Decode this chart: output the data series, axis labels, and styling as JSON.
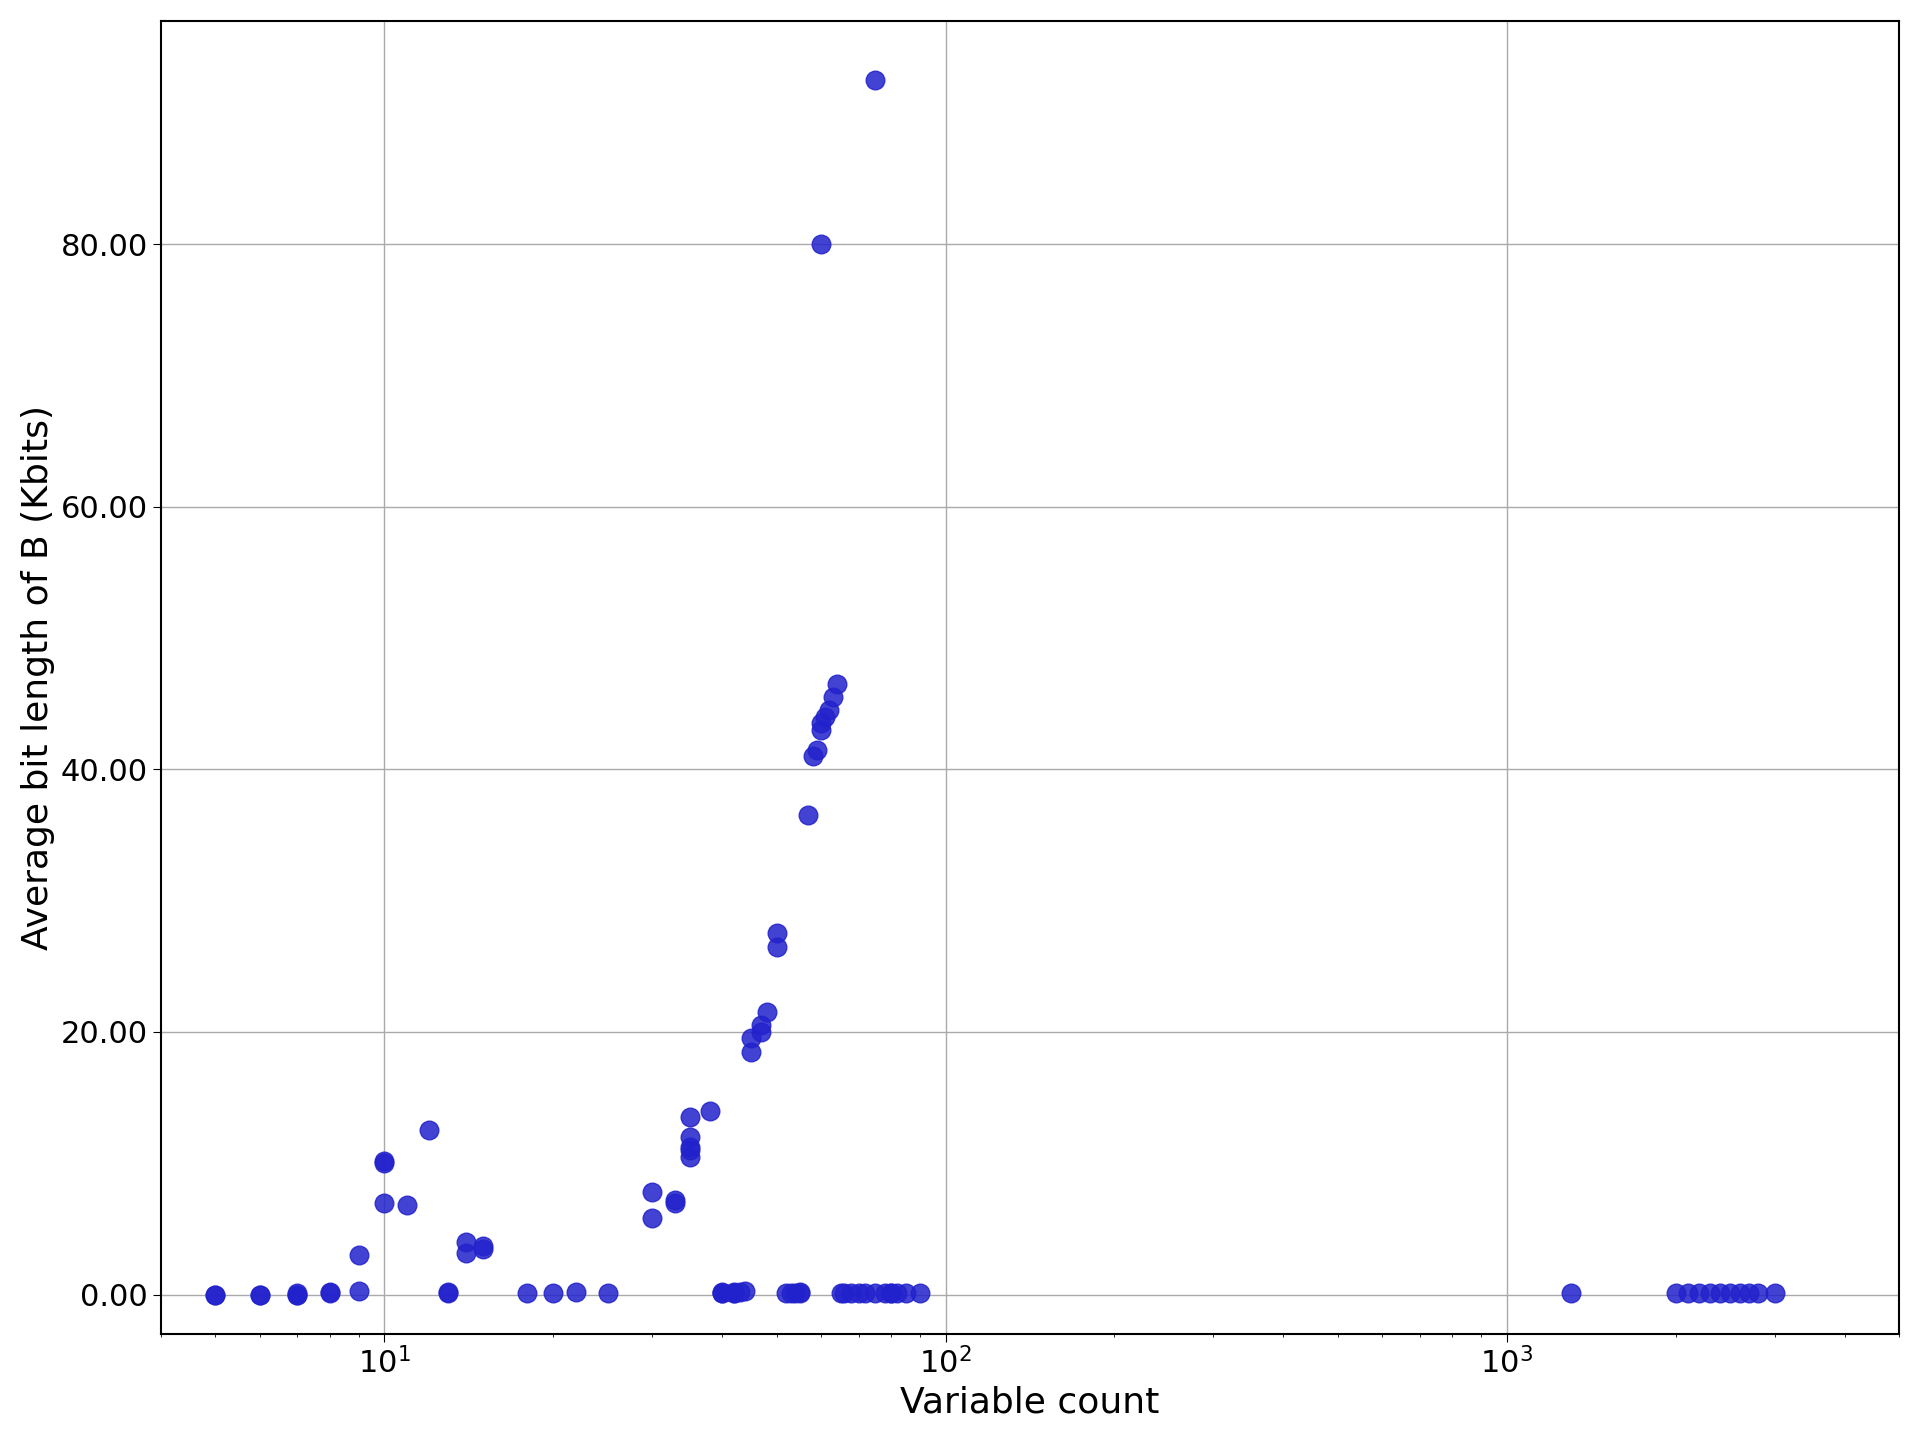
{
  "title": "",
  "xlabel": "Variable count",
  "ylabel": "Average bit length of B (Kbits)",
  "dot_color": "#2222cc",
  "dot_alpha": 0.85,
  "dot_size": 180,
  "background_color": "#ffffff",
  "grid_color": "#aaaaaa",
  "yticks": [
    0.0,
    20.0,
    40.0,
    60.0,
    80.0
  ],
  "ytick_labels": [
    "0.00",
    "20.00",
    "40.00",
    "60.00",
    "80.00"
  ],
  "xlim_log": [
    4,
    5000
  ],
  "ylim": [
    -3,
    97
  ],
  "xlabel_fontsize": 26,
  "ylabel_fontsize": 26,
  "tick_fontsize": 22,
  "points": [
    [
      5,
      0.0
    ],
    [
      5,
      0.0
    ],
    [
      6,
      0.0
    ],
    [
      6,
      0.0
    ],
    [
      7,
      0.0
    ],
    [
      7,
      0.0
    ],
    [
      7,
      0.1
    ],
    [
      8,
      0.15
    ],
    [
      8,
      0.2
    ],
    [
      9,
      0.25
    ],
    [
      9,
      3.0
    ],
    [
      10,
      10.2
    ],
    [
      10,
      10.0
    ],
    [
      10,
      7.0
    ],
    [
      11,
      6.8
    ],
    [
      12,
      12.5
    ],
    [
      13,
      0.1
    ],
    [
      13,
      0.2
    ],
    [
      14,
      3.2
    ],
    [
      14,
      4.0
    ],
    [
      15,
      3.5
    ],
    [
      15,
      3.7
    ],
    [
      18,
      0.1
    ],
    [
      20,
      0.1
    ],
    [
      22,
      0.2
    ],
    [
      25,
      0.1
    ],
    [
      30,
      5.8
    ],
    [
      30,
      7.8
    ],
    [
      33,
      7.0
    ],
    [
      33,
      7.2
    ],
    [
      35,
      10.5
    ],
    [
      35,
      11.0
    ],
    [
      35,
      11.2
    ],
    [
      35,
      12.0
    ],
    [
      35,
      13.5
    ],
    [
      38,
      14.0
    ],
    [
      40,
      0.1
    ],
    [
      40,
      0.15
    ],
    [
      40,
      0.2
    ],
    [
      42,
      0.1
    ],
    [
      42,
      0.15
    ],
    [
      42,
      0.2
    ],
    [
      43,
      0.2
    ],
    [
      44,
      0.25
    ],
    [
      45,
      18.5
    ],
    [
      45,
      19.5
    ],
    [
      47,
      20.0
    ],
    [
      47,
      20.5
    ],
    [
      48,
      21.5
    ],
    [
      50,
      26.5
    ],
    [
      50,
      27.5
    ],
    [
      52,
      0.1
    ],
    [
      53,
      0.1
    ],
    [
      54,
      0.1
    ],
    [
      55,
      0.1
    ],
    [
      55,
      0.2
    ],
    [
      57,
      36.5
    ],
    [
      58,
      41.0
    ],
    [
      59,
      41.5
    ],
    [
      60,
      43.0
    ],
    [
      60,
      43.5
    ],
    [
      61,
      44.0
    ],
    [
      62,
      44.5
    ],
    [
      63,
      45.5
    ],
    [
      64,
      46.5
    ],
    [
      65,
      0.1
    ],
    [
      66,
      0.1
    ],
    [
      68,
      0.1
    ],
    [
      70,
      0.1
    ],
    [
      72,
      0.1
    ],
    [
      75,
      0.1
    ],
    [
      78,
      0.1
    ],
    [
      80,
      0.1
    ],
    [
      82,
      0.1
    ],
    [
      60,
      80.0
    ],
    [
      75,
      92.5
    ],
    [
      80,
      0.1
    ],
    [
      85,
      0.1
    ],
    [
      90,
      0.1
    ],
    [
      1300,
      0.1
    ],
    [
      2000,
      0.1
    ],
    [
      2100,
      0.1
    ],
    [
      2200,
      0.1
    ],
    [
      2300,
      0.1
    ],
    [
      2400,
      0.1
    ],
    [
      2500,
      0.1
    ],
    [
      2600,
      0.1
    ],
    [
      2700,
      0.1
    ],
    [
      2800,
      0.1
    ],
    [
      3000,
      0.1
    ]
  ]
}
